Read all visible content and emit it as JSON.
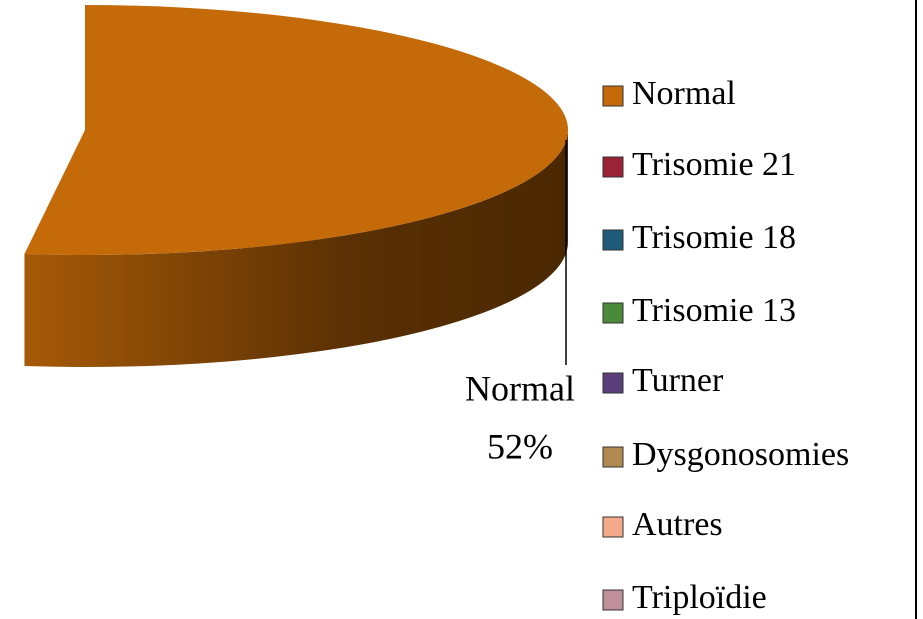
{
  "chart_data": {
    "type": "pie3d",
    "categories": [
      "Normal",
      "Trisomie 21",
      "Trisomie 18",
      "Trisomie 13",
      "Turner",
      "Dysgonosomies",
      "Autres",
      "Triploïdie"
    ],
    "values": [
      52,
      null,
      null,
      null,
      null,
      null,
      null,
      null
    ],
    "value_labels": [
      "52%",
      null,
      null,
      null,
      null,
      null,
      null,
      null
    ],
    "colors": [
      "#c46a08",
      "#9b2335",
      "#1f5a7a",
      "#4a8a3a",
      "#5a3f7a",
      "#b08a50",
      "#f4a98a",
      "#c0909a"
    ],
    "legend": "right"
  }
}
